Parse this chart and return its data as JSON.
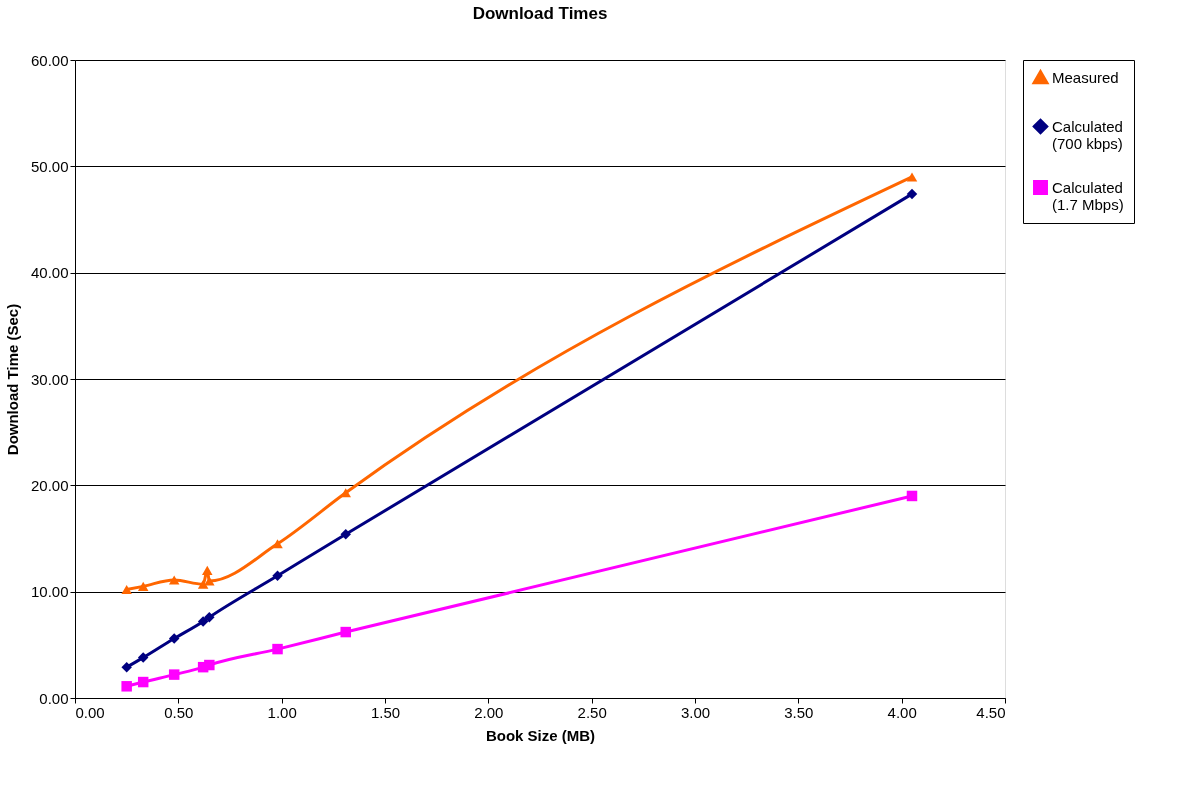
{
  "chart_data": {
    "type": "line",
    "title": "Download Times",
    "xlabel": "Book Size (MB)",
    "ylabel": "Download Time (Sec)",
    "xlim": [
      0,
      4.5
    ],
    "xticks": [
      {
        "value": 0,
        "label": "0.00"
      },
      {
        "value": 0.5,
        "label": "0.50"
      },
      {
        "value": 1,
        "label": "1.00"
      },
      {
        "value": 1.5,
        "label": "1.50"
      },
      {
        "value": 2,
        "label": "2.00"
      },
      {
        "value": 2.5,
        "label": "2.50"
      },
      {
        "value": 3,
        "label": "3.00"
      },
      {
        "value": 3.5,
        "label": "3.50"
      },
      {
        "value": 4,
        "label": "4.00"
      },
      {
        "value": 4.5,
        "label": "4.50"
      }
    ],
    "ylim": [
      0,
      60
    ],
    "yticks": [
      {
        "value": 0,
        "label": "0.00"
      },
      {
        "value": 10,
        "label": "10.00"
      },
      {
        "value": 20,
        "label": "20.00"
      },
      {
        "value": 30,
        "label": "30.00"
      },
      {
        "value": 40,
        "label": "40.00"
      },
      {
        "value": 50,
        "label": "50.00"
      },
      {
        "value": 60,
        "label": "60.00"
      }
    ],
    "grid": "y",
    "legend": "right",
    "series": [
      {
        "name": "Measured",
        "color": "#ff6600",
        "marker": "triangle",
        "x": [
          0.25,
          0.33,
          0.48,
          0.62,
          0.64,
          0.65,
          0.98,
          1.31,
          4.05
        ],
        "values": [
          10.2,
          10.5,
          11.1,
          10.7,
          12.0,
          11.0,
          14.5,
          19.3,
          49.0
        ]
      },
      {
        "name": "Calculated\n(700 kbps)",
        "color": "#000080",
        "marker": "diamond",
        "x": [
          0.25,
          0.33,
          0.48,
          0.62,
          0.65,
          0.98,
          1.31,
          4.05
        ],
        "values": [
          2.9,
          3.8,
          5.6,
          7.2,
          7.6,
          11.5,
          15.4,
          47.4
        ]
      },
      {
        "name": "Calculated\n(1.7 Mbps)",
        "color": "#ff00ff",
        "marker": "square",
        "x": [
          0.25,
          0.33,
          0.48,
          0.62,
          0.65,
          0.98,
          1.31,
          4.05
        ],
        "values": [
          1.1,
          1.5,
          2.2,
          2.9,
          3.1,
          4.6,
          6.2,
          19.0
        ]
      }
    ]
  }
}
